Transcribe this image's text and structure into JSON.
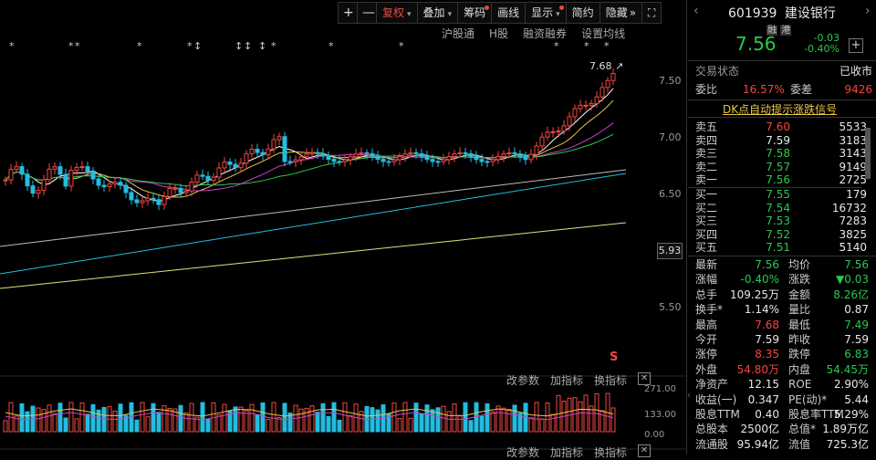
{
  "toolbar": {
    "plus": "+",
    "minus": "—",
    "rights": "复权",
    "overlay": "叠加",
    "chips": "筹码",
    "draw": "画线",
    "display": "显示",
    "simple": "简约",
    "hide": "隐藏",
    "more": "»",
    "expand": "⛶"
  },
  "chart": {
    "sub_links": [
      "沪股通",
      "H股",
      "融资融券",
      "设置均线"
    ],
    "high_marker": "7.68",
    "axis_prices": [
      "7.50",
      "7.00",
      "6.50",
      "5.93",
      "5.50"
    ],
    "current_axis_price": "5.93",
    "markers_top": [
      "*",
      "**",
      "*",
      "**",
      "↕",
      "↕",
      "*",
      "*",
      "*",
      "*",
      "*",
      "*",
      "*"
    ],
    "s_marker": "S",
    "lower": {
      "links": [
        "改参数",
        "加指标",
        "换指标"
      ],
      "axis": [
        "271.00",
        "133.00",
        "0.00"
      ]
    },
    "lower2": {
      "links": [
        "改参数",
        "加指标",
        "换指标"
      ]
    }
  },
  "quote": {
    "code": "601939",
    "name": "建设银行",
    "tags": [
      "融",
      "港"
    ],
    "price": "7.56",
    "change": "-0.03",
    "change_pct": "-0.40%",
    "add": "+",
    "status_label": "交易状态",
    "status_value": "已收市",
    "wb_label": "委比",
    "wb_value": "16.57%",
    "wc_label": "委差",
    "wc_value": "9426",
    "signal": "DK点自动提示涨跌信号"
  },
  "orderbook": {
    "asks": [
      {
        "label": "卖五",
        "price": "7.60",
        "vol": "5533"
      },
      {
        "label": "卖四",
        "price": "7.59",
        "vol": "3183"
      },
      {
        "label": "卖三",
        "price": "7.58",
        "vol": "3143"
      },
      {
        "label": "卖二",
        "price": "7.57",
        "vol": "9149"
      },
      {
        "label": "卖一",
        "price": "7.56",
        "vol": "2725"
      }
    ],
    "bids": [
      {
        "label": "买一",
        "price": "7.55",
        "vol": "179"
      },
      {
        "label": "买二",
        "price": "7.54",
        "vol": "16732"
      },
      {
        "label": "买三",
        "price": "7.53",
        "vol": "7283"
      },
      {
        "label": "买四",
        "price": "7.52",
        "vol": "3825"
      },
      {
        "label": "买五",
        "price": "7.51",
        "vol": "5140"
      }
    ]
  },
  "stats": [
    {
      "l1": "最新",
      "v1": "7.56",
      "c1": "green",
      "l2": "均价",
      "v2": "7.56",
      "c2": "green"
    },
    {
      "l1": "涨幅",
      "v1": "-0.40%",
      "c1": "green",
      "l2": "涨跌",
      "v2": "▼0.03",
      "c2": "green"
    },
    {
      "l1": "总手",
      "v1": "109.25万",
      "c1": "white",
      "l2": "金额",
      "v2": "8.26亿",
      "c2": "green"
    },
    {
      "l1": "换手*",
      "v1": "1.14%",
      "c1": "white",
      "l2": "量比",
      "v2": "0.87",
      "c2": "white"
    },
    {
      "l1": "最高",
      "v1": "7.68",
      "c1": "red",
      "l2": "最低",
      "v2": "7.49",
      "c2": "green"
    },
    {
      "l1": "今开",
      "v1": "7.59",
      "c1": "white",
      "l2": "昨收",
      "v2": "7.59",
      "c2": "white"
    },
    {
      "l1": "涨停",
      "v1": "8.35",
      "c1": "red",
      "l2": "跌停",
      "v2": "6.83",
      "c2": "green"
    },
    {
      "l1": "外盘",
      "v1": "54.80万",
      "c1": "red",
      "l2": "内盘",
      "v2": "54.45万",
      "c2": "green"
    },
    {
      "l1": "净资产",
      "v1": "12.15",
      "c1": "white",
      "l2": "ROE",
      "v2": "2.90%",
      "c2": "white"
    },
    {
      "l1": "收益(一)",
      "v1": "0.347",
      "c1": "white",
      "l2": "PE(动)*",
      "v2": "5.44",
      "c2": "white"
    },
    {
      "l1": "股息TTM",
      "v1": "0.40",
      "c1": "white",
      "l2": "股息率TTM",
      "v2": "5.29%",
      "c2": "white"
    },
    {
      "l1": "总股本",
      "v1": "2500亿",
      "c1": "white",
      "l2": "总值*",
      "v2": "1.89万亿",
      "c2": "white"
    },
    {
      "l1": "流通股",
      "v1": "95.94亿",
      "c1": "white",
      "l2": "流值",
      "v2": "725.3亿",
      "c2": "white"
    }
  ],
  "colors": {
    "up": "#f2473f",
    "down": "#27c94e",
    "bg": "#000000",
    "ma5": "#ffffff",
    "ma10": "#e8c547",
    "ma20": "#d040d0",
    "ma30": "#27c94e",
    "ma60": "#bbbbbb",
    "ma120": "#22bde0",
    "ma250": "#e8e07a"
  }
}
